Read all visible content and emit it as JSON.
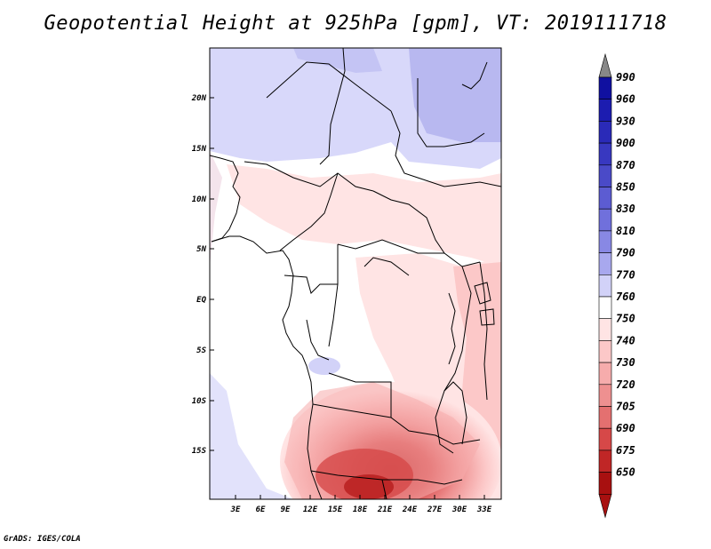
{
  "title": "Geopotential Height at 925hPa [gpm], VT: 2019111718",
  "credit": "GrADS: IGES/COLA",
  "map": {
    "lat_labels": [
      "20N",
      "15N",
      "10N",
      "5N",
      "EQ",
      "5S",
      "10S",
      "15S"
    ],
    "lon_labels": [
      "3E",
      "6E",
      "9E",
      "12E",
      "15E",
      "18E",
      "21E",
      "24E",
      "27E",
      "30E",
      "33E"
    ]
  },
  "colorbar": {
    "levels": [
      "990",
      "960",
      "930",
      "900",
      "870",
      "850",
      "830",
      "810",
      "790",
      "770",
      "760",
      "750",
      "740",
      "730",
      "720",
      "705",
      "690",
      "675",
      "650"
    ],
    "colors": [
      "#1010a0",
      "#1c1cb0",
      "#2a2ab8",
      "#3838c0",
      "#4a4ac8",
      "#5c5cd2",
      "#7070dc",
      "#8888e4",
      "#a8a8ee",
      "#d2d2f8",
      "#ffffff",
      "#ffe4e4",
      "#fcc8c8",
      "#f6acac",
      "#ee9090",
      "#e47070",
      "#d64848",
      "#c02626",
      "#a81010"
    ],
    "under_color": "#a81010",
    "over_color": "#888888"
  }
}
